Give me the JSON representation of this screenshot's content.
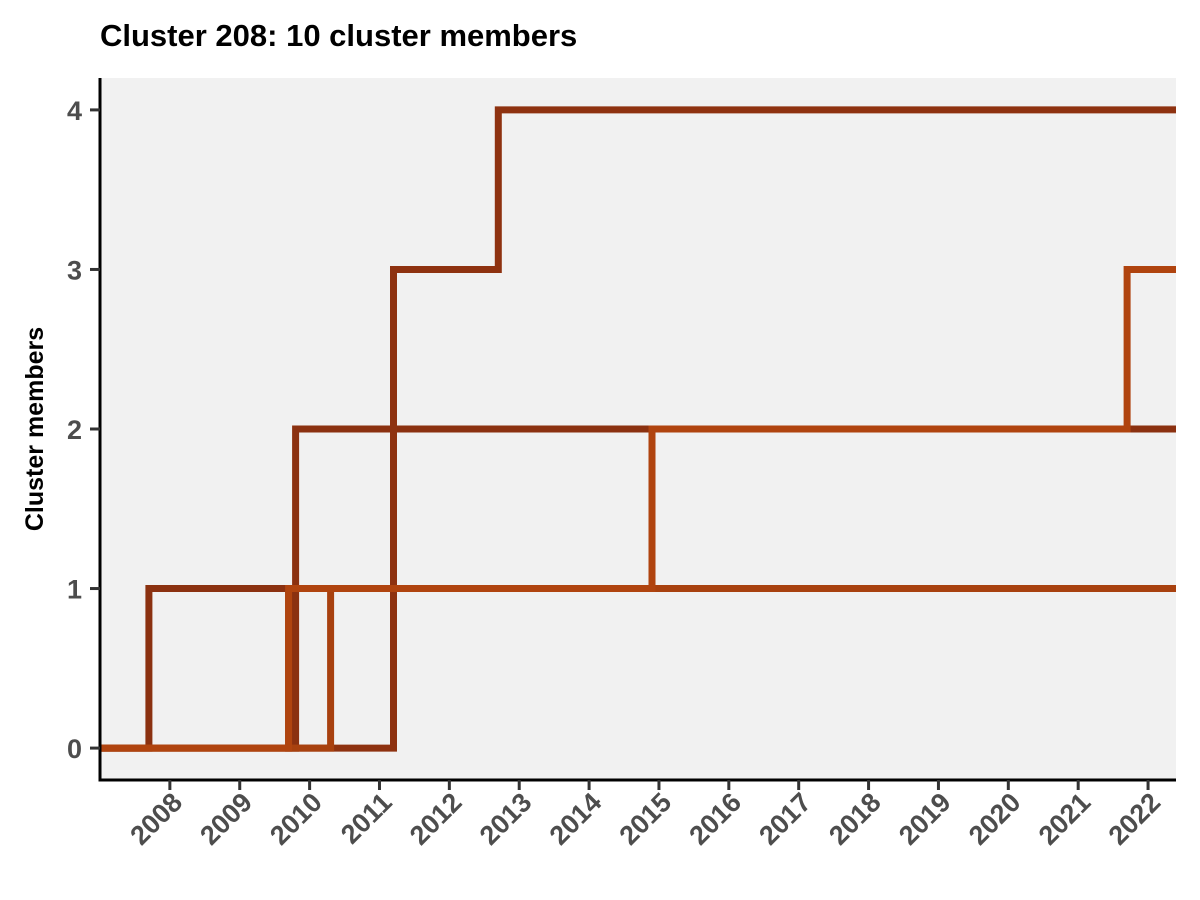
{
  "chart_data": {
    "type": "line",
    "step": true,
    "title": "Cluster 208: 10 cluster members",
    "xlabel": "",
    "ylabel": "Cluster members",
    "xlim": [
      2007.0,
      2022.4
    ],
    "ylim": [
      -0.2,
      4.2
    ],
    "x_ticks": [
      2008,
      2009,
      2010,
      2011,
      2012,
      2013,
      2014,
      2015,
      2016,
      2017,
      2018,
      2019,
      2020,
      2021,
      2022
    ],
    "y_ticks": [
      0,
      1,
      2,
      3,
      4
    ],
    "grid": false,
    "legend": "none",
    "panel_background": "#f1f1f1",
    "series": [
      {
        "color": "#8b3110",
        "points": [
          [
            2007.0,
            0
          ],
          [
            2007.7,
            0
          ],
          [
            2007.7,
            1
          ],
          [
            2009.7,
            1
          ],
          [
            2009.7,
            0
          ],
          [
            2009.8,
            0
          ],
          [
            2009.8,
            2
          ],
          [
            2022.4,
            2
          ]
        ]
      },
      {
        "color": "#8e3210",
        "points": [
          [
            2007.0,
            0
          ],
          [
            2011.2,
            0
          ],
          [
            2011.2,
            1
          ],
          [
            2011.2,
            3
          ],
          [
            2012.7,
            3
          ],
          [
            2012.7,
            4
          ],
          [
            2022.4,
            4
          ]
        ]
      },
      {
        "color": "#a8410f",
        "points": [
          [
            2007.0,
            0
          ],
          [
            2010.3,
            0
          ],
          [
            2010.3,
            1
          ],
          [
            2022.4,
            1
          ]
        ]
      },
      {
        "color": "#b0440f",
        "points": [
          [
            2007.0,
            0
          ],
          [
            2009.7,
            0
          ],
          [
            2009.7,
            1
          ],
          [
            2014.9,
            1
          ],
          [
            2014.9,
            2
          ],
          [
            2021.7,
            2
          ],
          [
            2021.7,
            3
          ],
          [
            2022.4,
            3
          ]
        ]
      }
    ]
  }
}
